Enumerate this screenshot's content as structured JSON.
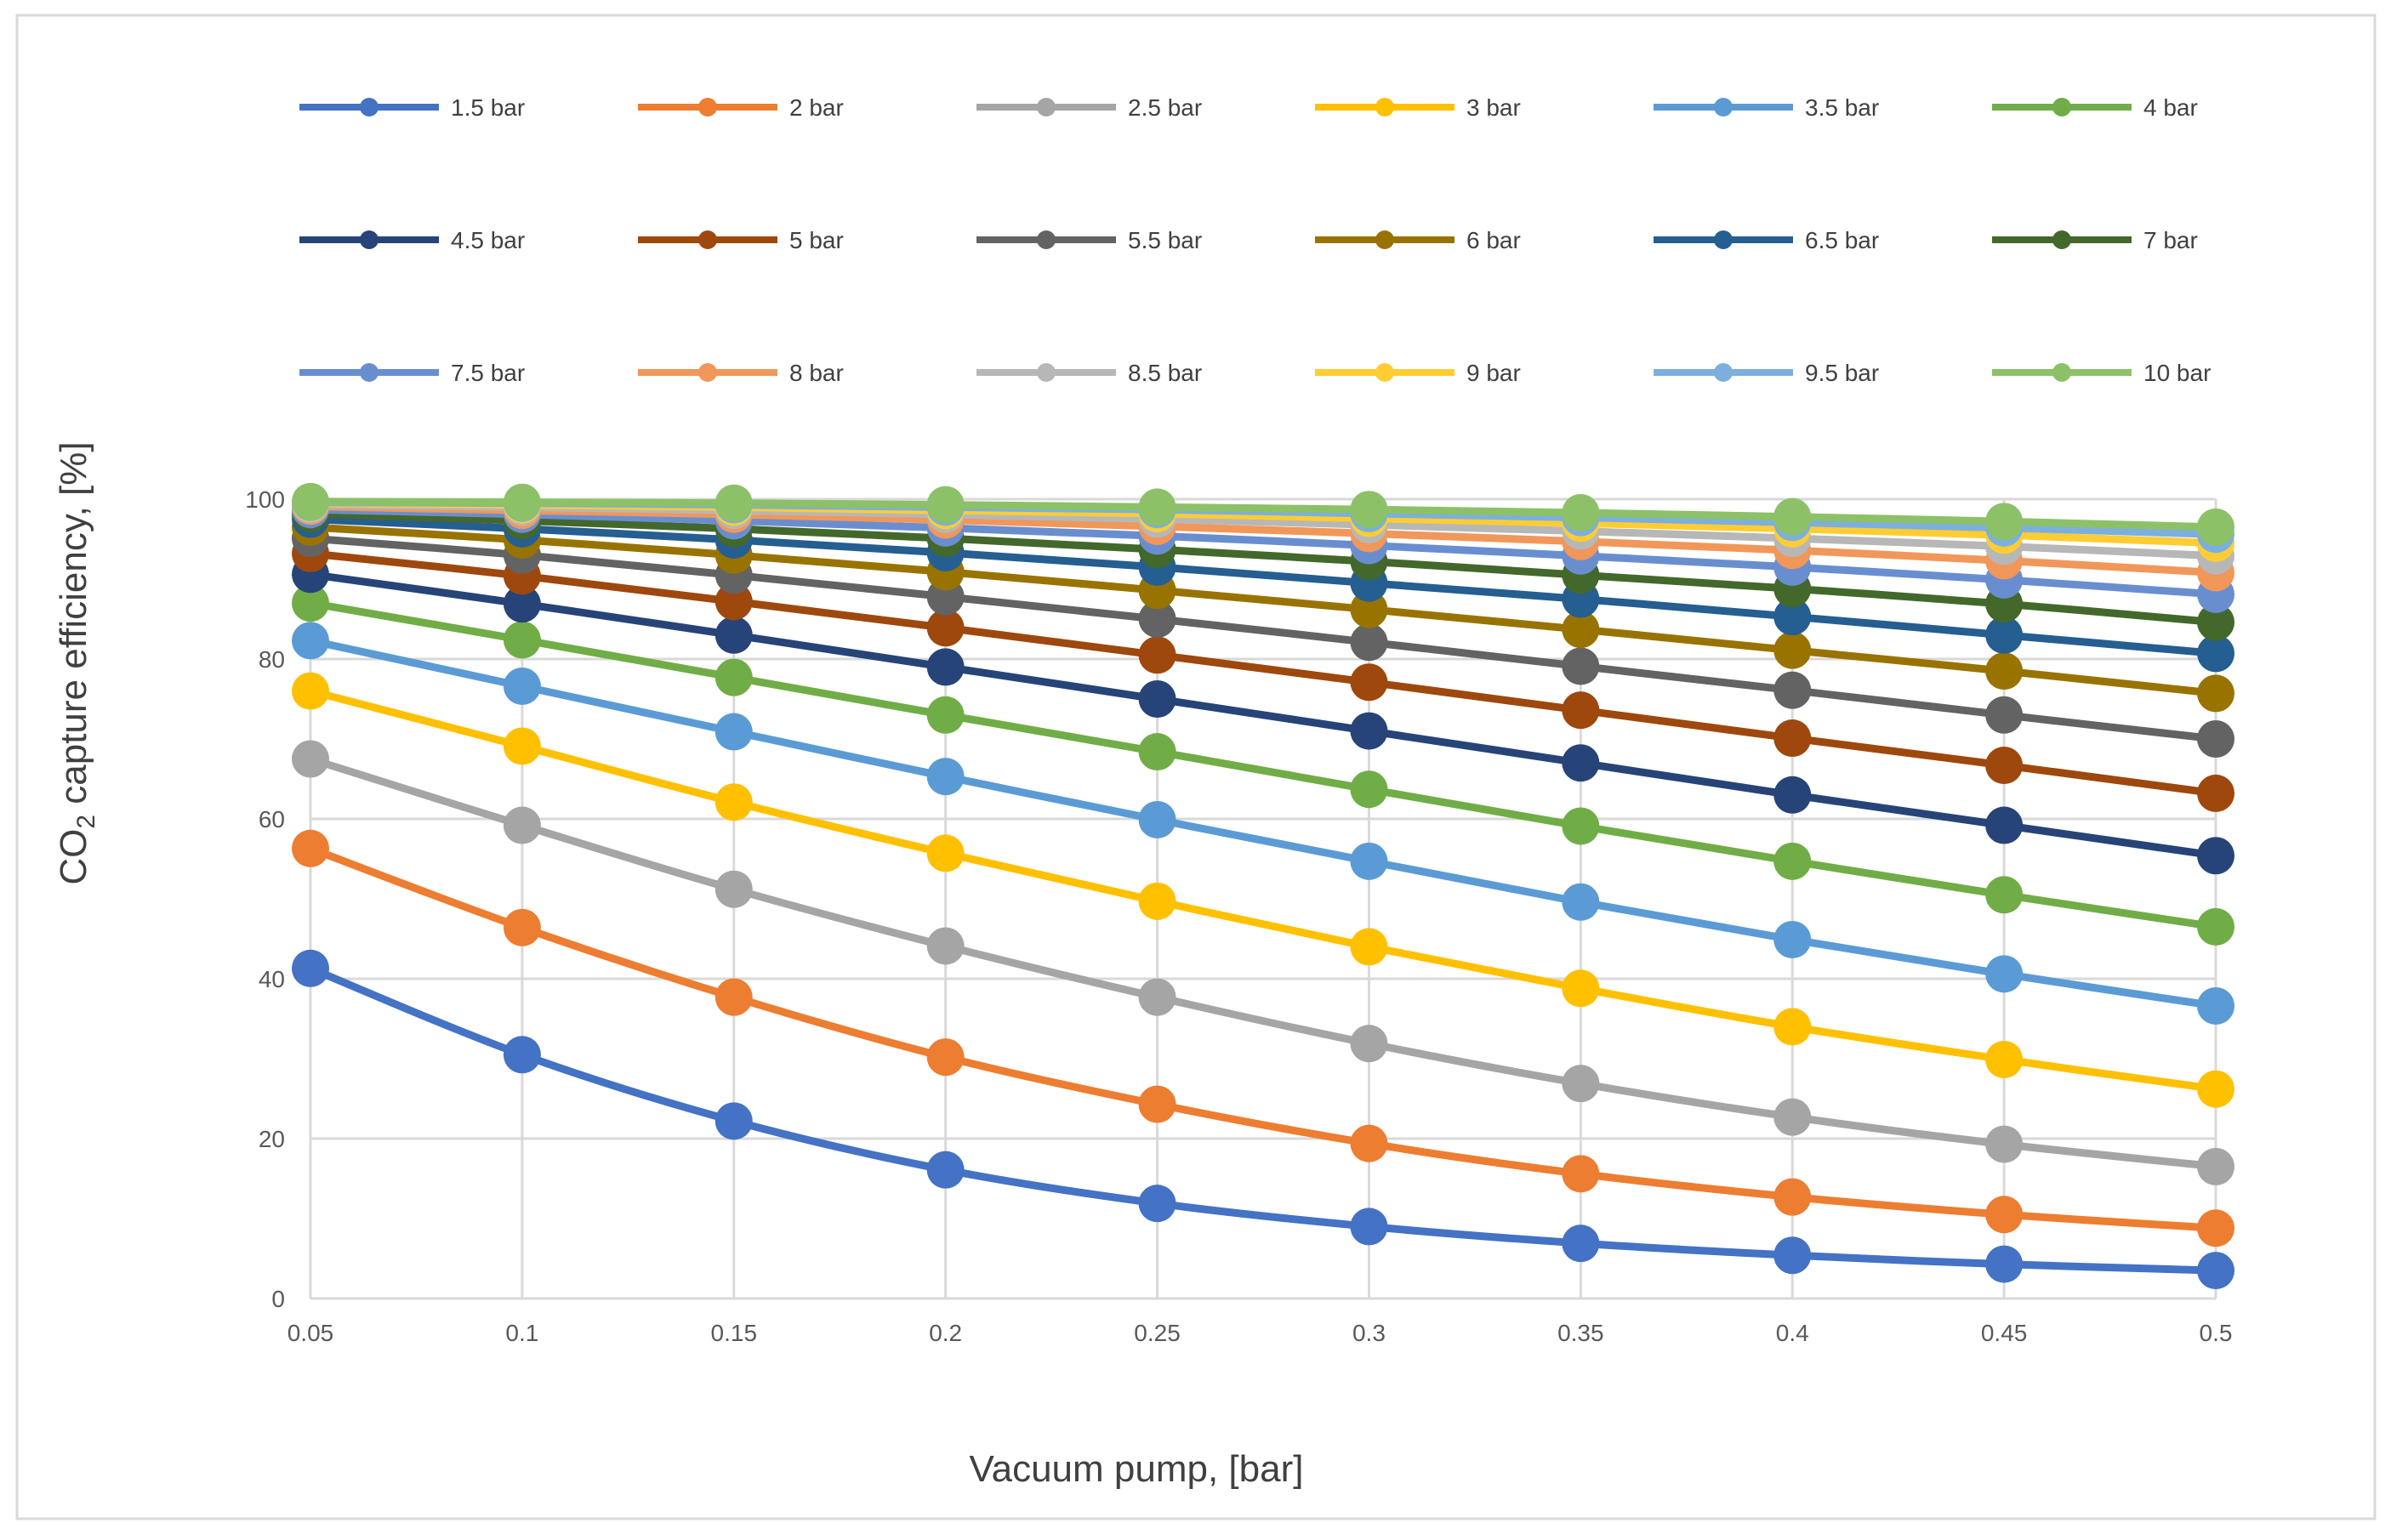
{
  "chart_data": {
    "type": "line",
    "xlabel": "Vacuum pump, [bar]",
    "ylabel_parts": {
      "main": "CO",
      "subscript": "2",
      "rest": " capture efficiency, [%]"
    },
    "x": [
      0.05,
      0.1,
      0.15,
      0.2,
      0.25,
      0.3,
      0.35,
      0.4,
      0.45,
      0.5
    ],
    "x_tick_labels": [
      "0.05",
      "0.1",
      "0.15",
      "0.2",
      "0.25",
      "0.3",
      "0.35",
      "0.4",
      "0.45",
      "0.5"
    ],
    "ylim": [
      0,
      100
    ],
    "y_ticks": [
      0,
      20,
      40,
      60,
      80,
      100
    ],
    "y_tick_labels": [
      "0",
      "20",
      "40",
      "60",
      "80",
      "100"
    ],
    "grid": true,
    "legend_position": "top",
    "series": [
      {
        "name": "1.5 bar",
        "color": "#4472C4",
        "values": [
          41.3,
          30.5,
          22.2,
          16.1,
          11.9,
          9.0,
          6.9,
          5.4,
          4.3,
          3.5
        ]
      },
      {
        "name": "2 bar",
        "color": "#ED7D31",
        "values": [
          56.3,
          46.4,
          37.7,
          30.2,
          24.3,
          19.4,
          15.6,
          12.7,
          10.5,
          8.8
        ]
      },
      {
        "name": "2.5 bar",
        "color": "#A5A5A5",
        "values": [
          67.5,
          59.2,
          51.2,
          44.1,
          37.7,
          31.9,
          26.9,
          22.7,
          19.3,
          16.5
        ]
      },
      {
        "name": "3 bar",
        "color": "#FFC000",
        "values": [
          76.0,
          69.1,
          62.1,
          55.7,
          49.7,
          44.0,
          38.8,
          34.0,
          29.9,
          26.2
        ]
      },
      {
        "name": "3.5 bar",
        "color": "#5B9BD5",
        "values": [
          82.3,
          76.6,
          70.9,
          65.3,
          59.9,
          54.7,
          49.6,
          44.9,
          40.6,
          36.6
        ]
      },
      {
        "name": "4 bar",
        "color": "#70AD47",
        "values": [
          87.0,
          82.4,
          77.7,
          73.0,
          68.4,
          63.7,
          59.1,
          54.7,
          50.5,
          46.5
        ]
      },
      {
        "name": "4.5 bar",
        "color": "#264478",
        "values": [
          90.6,
          86.9,
          83.0,
          79.0,
          75.0,
          71.0,
          67.0,
          63.0,
          59.2,
          55.4
        ]
      },
      {
        "name": "5 bar",
        "color": "#9E480E",
        "values": [
          93.2,
          90.4,
          87.2,
          83.9,
          80.5,
          77.1,
          73.6,
          70.1,
          66.7,
          63.2
        ]
      },
      {
        "name": "5.5 bar",
        "color": "#636363",
        "values": [
          95.1,
          93.0,
          90.5,
          87.8,
          85.0,
          82.1,
          79.1,
          76.1,
          73.0,
          70.0
        ]
      },
      {
        "name": "6 bar",
        "color": "#997300",
        "values": [
          96.5,
          94.9,
          93.0,
          90.9,
          88.6,
          86.2,
          83.7,
          81.1,
          78.5,
          75.7
        ]
      },
      {
        "name": "6.5 bar",
        "color": "#255E91",
        "values": [
          97.5,
          96.3,
          94.9,
          93.3,
          91.5,
          89.5,
          87.5,
          85.3,
          83.0,
          80.7
        ]
      },
      {
        "name": "7 bar",
        "color": "#43682B",
        "values": [
          98.2,
          97.3,
          96.3,
          95.1,
          93.7,
          92.2,
          90.5,
          88.8,
          86.9,
          84.6
        ]
      },
      {
        "name": "7.5 bar",
        "color": "#698ED0",
        "values": [
          98.7,
          98.1,
          97.3,
          96.4,
          95.4,
          94.2,
          92.9,
          91.5,
          89.9,
          88.1
        ]
      },
      {
        "name": "8 bar",
        "color": "#F1975A",
        "values": [
          99.1,
          98.6,
          98.1,
          97.4,
          96.6,
          95.7,
          94.7,
          93.6,
          92.3,
          90.8
        ]
      },
      {
        "name": "8.5 bar",
        "color": "#B7B7B7",
        "values": [
          99.3,
          99.0,
          98.6,
          98.1,
          97.5,
          96.8,
          96.0,
          95.1,
          94.1,
          92.9
        ]
      },
      {
        "name": "9 bar",
        "color": "#FFCD33",
        "values": [
          99.5,
          99.3,
          99.0,
          98.6,
          98.2,
          97.6,
          97.0,
          96.3,
          95.5,
          94.5
        ]
      },
      {
        "name": "9.5 bar",
        "color": "#7CAFDD",
        "values": [
          99.6,
          99.5,
          99.3,
          99.0,
          98.7,
          98.2,
          97.7,
          97.1,
          96.4,
          95.6
        ]
      },
      {
        "name": "10 bar",
        "color": "#8CC168",
        "values": [
          99.7,
          99.6,
          99.5,
          99.3,
          99.0,
          98.7,
          98.3,
          97.8,
          97.2,
          96.5
        ]
      }
    ]
  }
}
